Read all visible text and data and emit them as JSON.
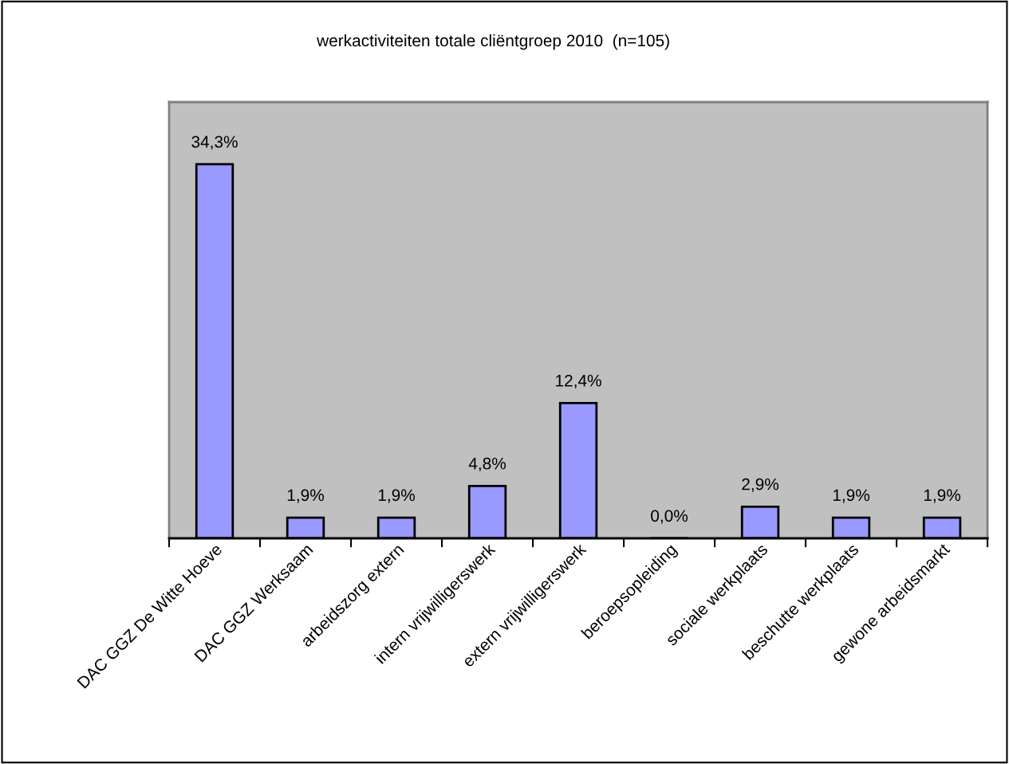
{
  "chart_data": {
    "type": "bar",
    "title": "werkactiviteiten totale cliëntgroep 2010  (n=105)",
    "categories": [
      "DAC GGZ De Witte Hoeve",
      "DAC GGZ Werksaam",
      "arbeidszorg extern",
      "intern vrijwilligerswerk",
      "extern vrijwilligerswerk",
      "beroepsopleiding",
      "sociale werkplaats",
      "beschutte werkplaats",
      "gewone arbeidsmarkt"
    ],
    "values": [
      34.3,
      1.9,
      1.9,
      4.8,
      12.4,
      0.0,
      2.9,
      1.9,
      1.9
    ],
    "value_labels": [
      "34,3%",
      "1,9%",
      "1,9%",
      "4,8%",
      "12,4%",
      "0,0%",
      "2,9%",
      "1,9%",
      "1,9%"
    ],
    "color": "#9999ff",
    "ylim": [
      0,
      40
    ],
    "tick_labels": "x",
    "grid": false,
    "legend": false
  }
}
